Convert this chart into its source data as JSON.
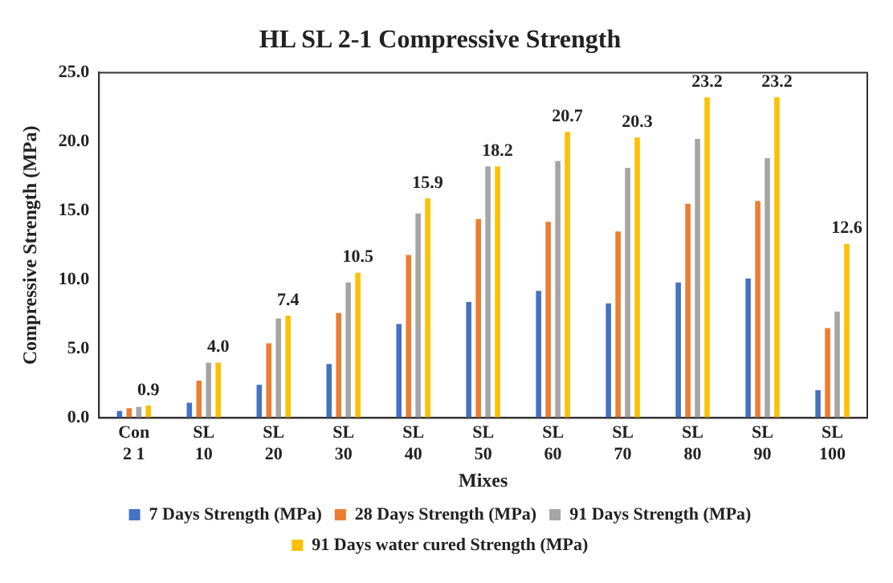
{
  "chart_data": {
    "type": "bar",
    "title": "HL SL 2-1 Compressive Strength",
    "xlabel": "Mixes",
    "ylabel": "Compressive Strength (MPa)",
    "categories": [
      "Con 2 1",
      "SL 10",
      "SL 20",
      "SL 30",
      "SL 40",
      "SL 50",
      "SL 60",
      "SL 70",
      "SL 80",
      "SL 90",
      "SL 100"
    ],
    "series": [
      {
        "name": "7 Days Strength (MPa)",
        "color": "#4472c4",
        "values": [
          0.5,
          1.1,
          2.4,
          3.9,
          6.8,
          8.4,
          9.2,
          8.3,
          9.8,
          10.1,
          2.0
        ]
      },
      {
        "name": "28 Days Strength (MPa)",
        "color": "#ed7d31",
        "values": [
          0.7,
          2.7,
          5.4,
          7.6,
          11.8,
          14.4,
          14.2,
          13.5,
          15.5,
          15.7,
          6.5
        ]
      },
      {
        "name": "91 Days Strength (MPa)",
        "color": "#a5a5a5",
        "values": [
          0.8,
          4.0,
          7.2,
          9.8,
          14.8,
          18.2,
          18.6,
          18.1,
          20.2,
          18.8,
          7.7
        ]
      },
      {
        "name": "91 Days water cured Strength (MPa)",
        "color": "#ffc000",
        "values": [
          0.9,
          4.0,
          7.4,
          10.5,
          15.9,
          18.2,
          20.7,
          20.3,
          23.2,
          23.2,
          12.6
        ],
        "value_labels": [
          "0.9",
          "4.0",
          "7.4",
          "10.5",
          "15.9",
          "18.2",
          "20.7",
          "20.3",
          "23.2",
          "23.2",
          "12.6"
        ]
      }
    ],
    "ylim": [
      0,
      25
    ],
    "yticks": [
      {
        "value": 0,
        "label": "0.0"
      },
      {
        "value": 5,
        "label": "5.0"
      },
      {
        "value": 10,
        "label": "10.0"
      },
      {
        "value": 15,
        "label": "15.0"
      },
      {
        "value": 20,
        "label": "20.0"
      },
      {
        "value": 25,
        "label": "25.0"
      }
    ],
    "grid": false,
    "legend": "bottom"
  }
}
